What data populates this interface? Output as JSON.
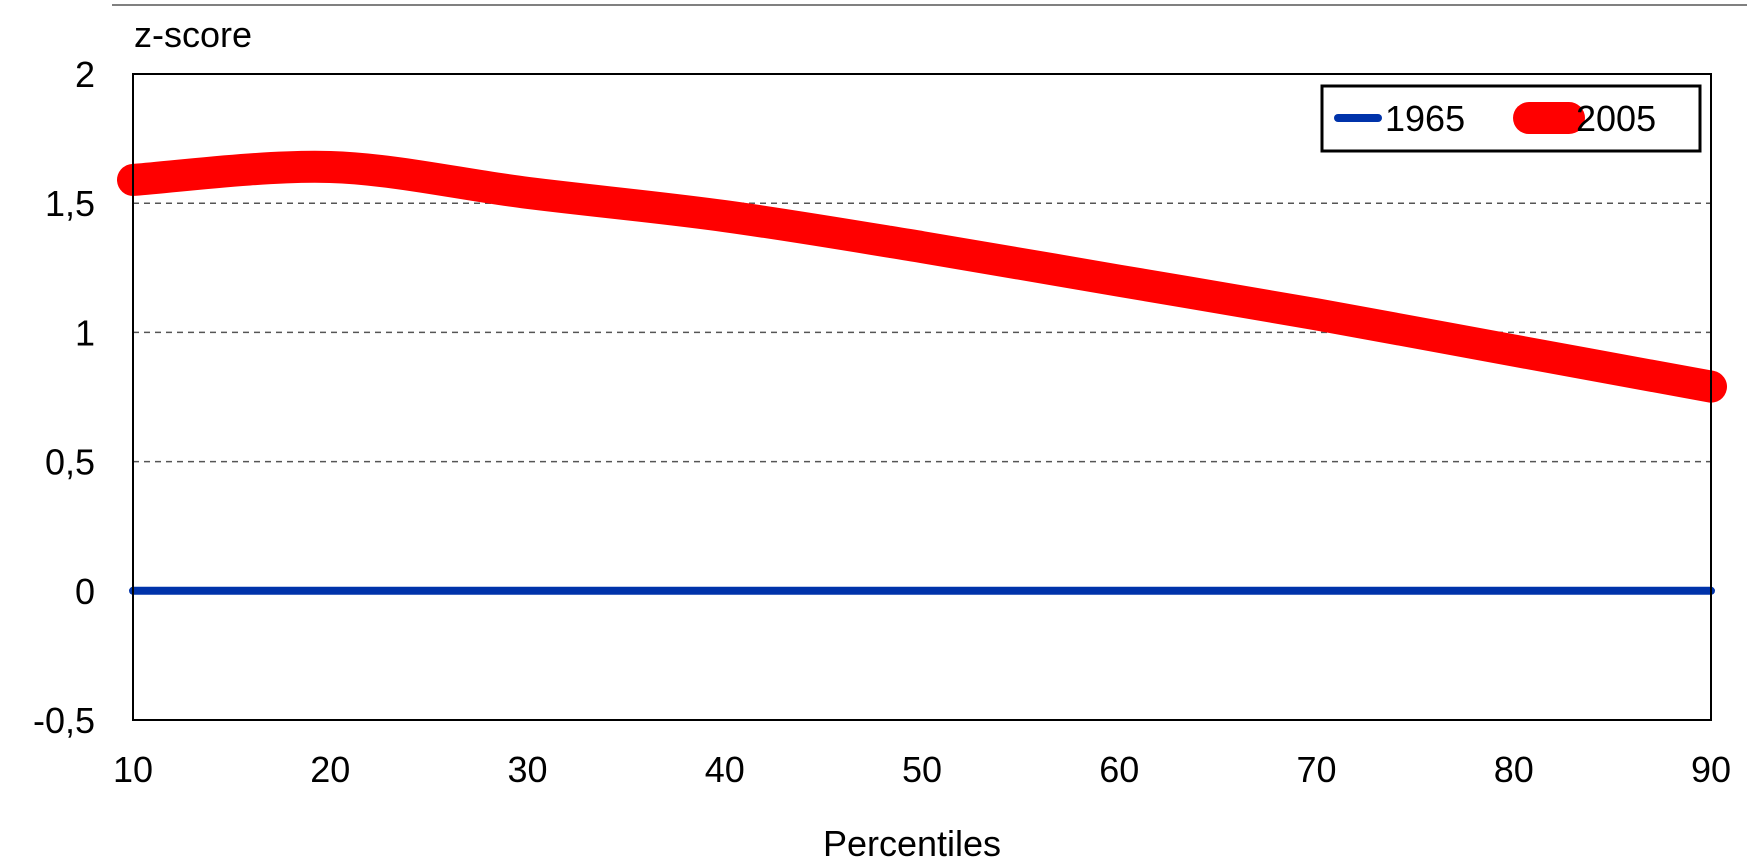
{
  "chart_data": {
    "type": "line",
    "ylabel": "z-score",
    "xlabel": "Percentiles",
    "xlim": [
      10,
      90
    ],
    "ylim": [
      -0.5,
      2
    ],
    "x_ticks": [
      10,
      20,
      30,
      40,
      50,
      60,
      70,
      80,
      90
    ],
    "y_ticks": [
      {
        "value": -0.5,
        "label": "-0,5"
      },
      {
        "value": 0,
        "label": "0"
      },
      {
        "value": 0.5,
        "label": "0,5"
      },
      {
        "value": 1,
        "label": "1"
      },
      {
        "value": 1.5,
        "label": "1,5"
      },
      {
        "value": 2,
        "label": "2"
      }
    ],
    "gridlines": [
      0.5,
      1,
      1.5
    ],
    "legend_position": "top-right",
    "series": [
      {
        "name": "1965",
        "color": "#0033aa",
        "x": [
          10,
          20,
          30,
          40,
          50,
          60,
          70,
          80,
          90
        ],
        "y": [
          0,
          0,
          0,
          0,
          0,
          0,
          0,
          0,
          0
        ]
      },
      {
        "name": "2005",
        "color": "#ff0000",
        "x": [
          10,
          20,
          30,
          40,
          50,
          60,
          70,
          80,
          90
        ],
        "y": [
          1.59,
          1.64,
          1.54,
          1.45,
          1.33,
          1.2,
          1.07,
          0.93,
          0.79
        ]
      }
    ]
  }
}
